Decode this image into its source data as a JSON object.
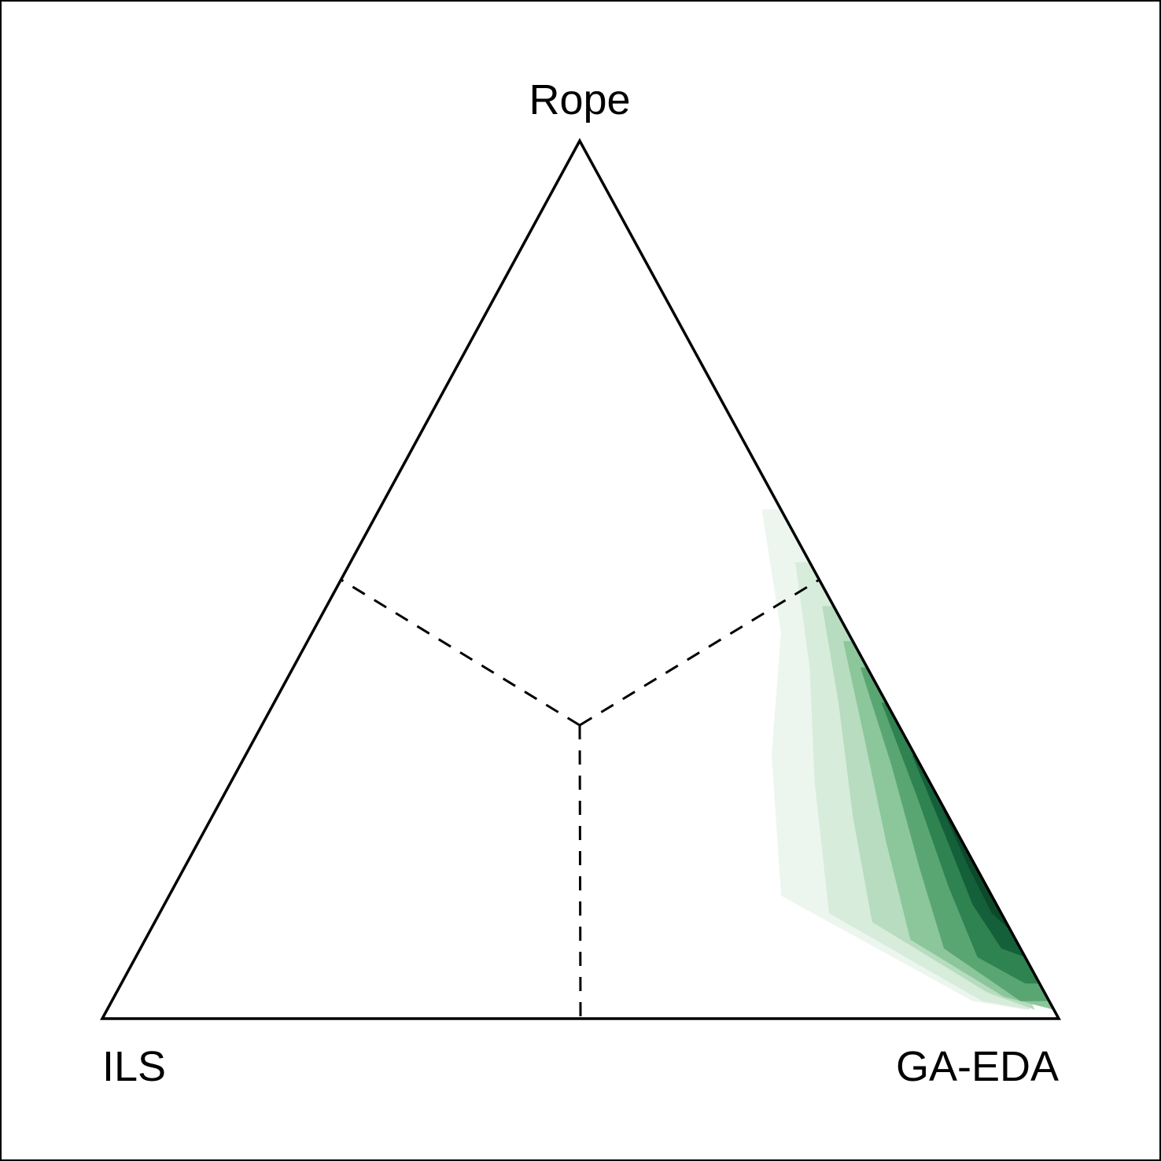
{
  "chart_data": {
    "type": "ternary-density",
    "vertices": {
      "top": "Rope",
      "bottom_left": "ILS",
      "bottom_right": "GA-EDA"
    },
    "region_dividers": "dashed",
    "density": {
      "colors": [
        "#ecf6ee",
        "#d7ecdb",
        "#b7dcbf",
        "#8cc69b",
        "#5aa673",
        "#2f8350",
        "#14603a",
        "#0c4a2b"
      ],
      "levels": [
        {
          "points": [
            [
              0.02,
              0.58
            ],
            [
              0.07,
              0.44
            ],
            [
              0.15,
              0.3
            ],
            [
              0.22,
              0.14
            ],
            [
              0.08,
              0.02
            ],
            [
              0.03,
              0.01
            ],
            [
              0.0,
              0.3
            ],
            [
              0.0,
              0.58
            ]
          ]
        },
        {
          "points": [
            [
              0.015,
              0.52
            ],
            [
              0.06,
              0.4
            ],
            [
              0.12,
              0.27
            ],
            [
              0.18,
              0.12
            ],
            [
              0.07,
              0.02
            ],
            [
              0.025,
              0.01
            ],
            [
              0.0,
              0.28
            ],
            [
              0.0,
              0.52
            ]
          ]
        },
        {
          "points": [
            [
              0.012,
              0.47
            ],
            [
              0.05,
              0.36
            ],
            [
              0.1,
              0.23
            ],
            [
              0.14,
              0.11
            ],
            [
              0.06,
              0.03
            ],
            [
              0.02,
              0.01
            ],
            [
              0.0,
              0.25
            ],
            [
              0.0,
              0.47
            ]
          ]
        },
        {
          "points": [
            [
              0.01,
              0.43
            ],
            [
              0.04,
              0.33
            ],
            [
              0.08,
              0.2
            ],
            [
              0.11,
              0.09
            ],
            [
              0.045,
              0.025
            ],
            [
              0.0,
              0.01
            ],
            [
              0.0,
              0.22
            ],
            [
              0.0,
              0.43
            ]
          ]
        },
        {
          "points": [
            [
              0.007,
              0.4
            ],
            [
              0.03,
              0.29
            ],
            [
              0.06,
              0.17
            ],
            [
              0.08,
              0.08
            ],
            [
              0.03,
              0.02
            ],
            [
              0.0,
              0.02
            ],
            [
              0.0,
              0.2
            ],
            [
              0.0,
              0.4
            ]
          ]
        },
        {
          "points": [
            [
              0.005,
              0.36
            ],
            [
              0.022,
              0.25
            ],
            [
              0.04,
              0.15
            ],
            [
              0.05,
              0.07
            ],
            [
              0.015,
              0.04
            ],
            [
              0.0,
              0.04
            ],
            [
              0.0,
              0.18
            ],
            [
              0.0,
              0.36
            ]
          ]
        },
        {
          "points": [
            [
              0.003,
              0.3
            ],
            [
              0.014,
              0.21
            ],
            [
              0.025,
              0.13
            ],
            [
              0.02,
              0.08
            ],
            [
              0.0,
              0.07
            ],
            [
              0.0,
              0.18
            ],
            [
              0.0,
              0.3
            ]
          ]
        },
        {
          "points": [
            [
              0.002,
              0.24
            ],
            [
              0.008,
              0.17
            ],
            [
              0.01,
              0.12
            ],
            [
              0.0,
              0.1
            ],
            [
              0.0,
              0.17
            ],
            [
              0.0,
              0.24
            ]
          ]
        }
      ]
    }
  }
}
